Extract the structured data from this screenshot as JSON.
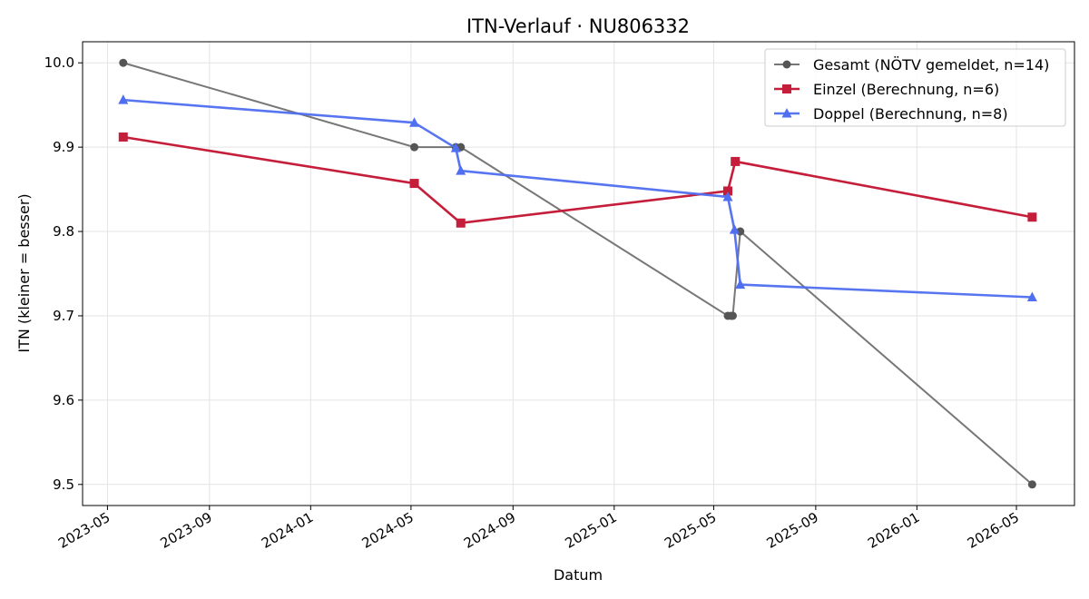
{
  "chart_data": {
    "type": "line",
    "title": "ITN-Verlauf · NU806332",
    "xlabel": "Datum",
    "ylabel": "ITN  (kleiner = besser)",
    "x_ticks": [
      "2023-05",
      "2023-09",
      "2024-01",
      "2024-05",
      "2024-09",
      "2025-01",
      "2025-05",
      "2025-09",
      "2026-01",
      "2026-05"
    ],
    "y_ticks": [
      "9.5",
      "9.6",
      "9.7",
      "9.8",
      "9.9",
      "10.0"
    ],
    "xlim": [
      "2023-04-01",
      "2026-07-10"
    ],
    "ylim": [
      9.475,
      10.025
    ],
    "grid": true,
    "legend_position": "top-right",
    "series": [
      {
        "name": "Gesamt (NÖTV gemeldet, n=14)",
        "color": "#555555",
        "marker": "circle",
        "points": [
          {
            "x": "2023-05-20",
            "y": 10.0
          },
          {
            "x": "2024-05-05",
            "y": 9.9
          },
          {
            "x": "2024-06-24",
            "y": 9.9
          },
          {
            "x": "2024-06-30",
            "y": 9.9
          },
          {
            "x": "2025-05-18",
            "y": 9.7
          },
          {
            "x": "2025-05-22",
            "y": 9.7
          },
          {
            "x": "2025-05-24",
            "y": 9.7
          },
          {
            "x": "2025-06-02",
            "y": 9.8
          },
          {
            "x": "2026-05-20",
            "y": 9.5
          }
        ]
      },
      {
        "name": "Einzel (Berechnung, n=6)",
        "color": "#c41e3a",
        "marker": "square",
        "points": [
          {
            "x": "2023-05-20",
            "y": 9.912
          },
          {
            "x": "2024-05-05",
            "y": 9.857
          },
          {
            "x": "2024-06-30",
            "y": 9.81
          },
          {
            "x": "2025-05-18",
            "y": 9.848
          },
          {
            "x": "2025-05-27",
            "y": 9.883
          },
          {
            "x": "2026-05-20",
            "y": 9.817
          }
        ]
      },
      {
        "name": "Doppel (Berechnung, n=8)",
        "color": "#4f6ef0",
        "marker": "triangle",
        "points": [
          {
            "x": "2023-05-20",
            "y": 9.956
          },
          {
            "x": "2024-05-05",
            "y": 9.929
          },
          {
            "x": "2024-06-24",
            "y": 9.899
          },
          {
            "x": "2024-06-30",
            "y": 9.872
          },
          {
            "x": "2025-05-18",
            "y": 9.841
          },
          {
            "x": "2025-05-26",
            "y": 9.802
          },
          {
            "x": "2025-06-02",
            "y": 9.737
          },
          {
            "x": "2026-05-20",
            "y": 9.722
          }
        ]
      }
    ]
  }
}
